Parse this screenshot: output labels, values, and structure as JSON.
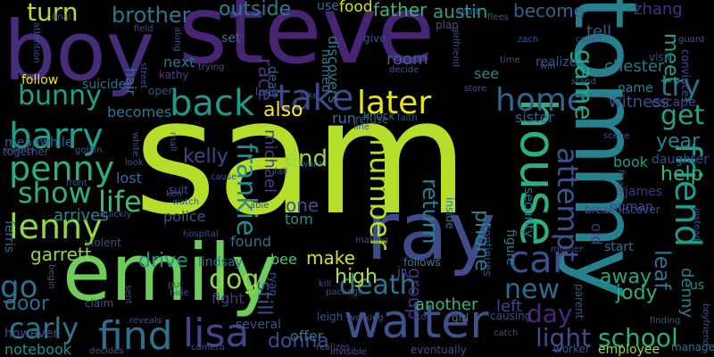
{
  "words": [
    {
      "text": "sam",
      "color": "#b5de2b"
    },
    {
      "text": "steve",
      "color": "#482475"
    },
    {
      "text": "boy",
      "color": "#472c7a"
    },
    {
      "text": "tommy",
      "color": "#26818e"
    },
    {
      "text": "emily",
      "color": "#6ccd5a"
    },
    {
      "text": "ray",
      "color": "#3e4c8a"
    },
    {
      "text": "walter",
      "color": "#3b528b"
    },
    {
      "text": "house",
      "color": "#2cb17e"
    },
    {
      "text": "barry",
      "color": "#1f9e89"
    },
    {
      "text": "penny",
      "color": "#2ab07f"
    },
    {
      "text": "take",
      "color": "#3e4989"
    },
    {
      "text": "later",
      "color": "#e5e419"
    },
    {
      "text": "back",
      "color": "#1f988b"
    },
    {
      "text": "home",
      "color": "#33638d"
    },
    {
      "text": "lenny",
      "color": "#90d743"
    },
    {
      "text": "find",
      "color": "#2d708e"
    },
    {
      "text": "lisa",
      "color": "#414487"
    },
    {
      "text": "car",
      "color": "#3c508b"
    },
    {
      "text": "friend",
      "color": "#1f9a8a"
    },
    {
      "text": "show",
      "color": "#2db27d"
    },
    {
      "text": "life",
      "color": "#3bbb75"
    },
    {
      "text": "number",
      "color": "#b8de29"
    },
    {
      "text": "carly",
      "color": "#2a788e"
    },
    {
      "text": "attempt",
      "color": "#3b528b"
    },
    {
      "text": "get",
      "color": "#20a486"
    },
    {
      "text": "try",
      "color": "#2c728e"
    },
    {
      "text": "frankie",
      "color": "#238a8d"
    },
    {
      "text": "bunny",
      "color": "#1fa088"
    },
    {
      "text": "go",
      "color": "#2d708e"
    },
    {
      "text": "new",
      "color": "#31688e"
    },
    {
      "text": "death",
      "color": "#2a788e"
    },
    {
      "text": "school",
      "color": "#29af7f"
    },
    {
      "text": "brother",
      "color": "#2a768e"
    },
    {
      "text": "light",
      "color": "#3e4c8a"
    },
    {
      "text": "game",
      "color": "#22a884"
    },
    {
      "text": "dog",
      "color": "#90d743"
    },
    {
      "text": "turn",
      "color": "#b5de2b"
    },
    {
      "text": "end",
      "color": "#95d840"
    },
    {
      "text": "day",
      "color": "#482979"
    },
    {
      "text": "outside",
      "color": "#287d8e"
    },
    {
      "text": "leaf",
      "color": "#2c738e"
    },
    {
      "text": "return",
      "color": "#26828e"
    },
    {
      "text": "door",
      "color": "#2f6c8e"
    },
    {
      "text": "year",
      "color": "#25838e"
    },
    {
      "text": "help",
      "color": "#2fb47c"
    },
    {
      "text": "donna",
      "color": "#3e4c8a"
    },
    {
      "text": "phone",
      "color": "#25858e"
    },
    {
      "text": "kelly",
      "color": "#3f4788"
    },
    {
      "text": "also",
      "color": "#fde725"
    },
    {
      "text": "away",
      "color": "#22a785"
    },
    {
      "text": "still",
      "color": "#3b528b"
    },
    {
      "text": "meet",
      "color": "#1f9e89"
    },
    {
      "text": "drive",
      "color": "#20928c"
    },
    {
      "text": "austin",
      "color": "#1fa187"
    },
    {
      "text": "father",
      "color": "#35b779"
    },
    {
      "text": "become",
      "color": "#34618d"
    },
    {
      "text": "food",
      "color": "#d2e21b"
    },
    {
      "text": "high",
      "color": "#b2dd2d"
    },
    {
      "text": "make",
      "color": "#d8e219"
    },
    {
      "text": "race",
      "color": "#46337e"
    },
    {
      "text": "discovers",
      "color": "#2a788e"
    },
    {
      "text": "michael",
      "color": "#424186"
    },
    {
      "text": "denny",
      "color": "#277f8e"
    },
    {
      "text": "jody",
      "color": "#2cb17e"
    },
    {
      "text": "group",
      "color": "#472d7b"
    },
    {
      "text": "garrett",
      "color": "#8fd744"
    },
    {
      "text": "one",
      "color": "#3b528b"
    },
    {
      "text": "zhang",
      "color": "#46327e"
    },
    {
      "text": "tell",
      "color": "#3a548c"
    },
    {
      "text": "next",
      "color": "#2b748e"
    },
    {
      "text": "arrives",
      "color": "#23898e"
    },
    {
      "text": "police",
      "color": "#39568c"
    },
    {
      "text": "chester",
      "color": "#2a788e"
    },
    {
      "text": "room",
      "color": "#32658e"
    },
    {
      "text": "left",
      "color": "#404588"
    },
    {
      "text": "witness",
      "color": "#3d4d8a"
    },
    {
      "text": "notebook",
      "color": "#21908d"
    },
    {
      "text": "sister",
      "color": "#38598c"
    },
    {
      "text": "another",
      "color": "#34b679"
    },
    {
      "text": "book",
      "color": "#1f9e89"
    },
    {
      "text": "lost",
      "color": "#2e6e8e"
    },
    {
      "text": "becomes",
      "color": "#2a788e"
    },
    {
      "text": "found",
      "color": "#2d718e"
    },
    {
      "text": "meanwhile",
      "color": "#355f8d"
    },
    {
      "text": "name",
      "color": "#26828e"
    },
    {
      "text": "see",
      "color": "#26828e"
    },
    {
      "text": "offer",
      "color": "#2b748e"
    },
    {
      "text": "bee",
      "color": "#50c46a"
    },
    {
      "text": "fight",
      "color": "#443983"
    },
    {
      "text": "tom",
      "color": "#20928c"
    },
    {
      "text": "run",
      "color": "#2c738e"
    },
    {
      "text": "james",
      "color": "#46337e"
    },
    {
      "text": "human",
      "color": "#3f4889"
    },
    {
      "text": "start",
      "color": "#2d708e"
    },
    {
      "text": "security",
      "color": "#2d708e"
    },
    {
      "text": "figure",
      "color": "#287d8e"
    },
    {
      "text": "old",
      "color": "#453781"
    },
    {
      "text": "hair",
      "color": "#2c738e"
    },
    {
      "text": "named",
      "color": "#2a788e"
    },
    {
      "text": "dead",
      "color": "#34618d"
    },
    {
      "text": "escape",
      "color": "#3f4889"
    },
    {
      "text": "daughter",
      "color": "#3e4a89"
    },
    {
      "text": "employee",
      "color": "#93d741"
    },
    {
      "text": "realize",
      "color": "#3b528b"
    },
    {
      "text": "kathy",
      "color": "#404588"
    },
    {
      "text": "visit",
      "color": "#3e4989"
    },
    {
      "text": "together",
      "color": "#3b528b"
    },
    {
      "text": "ferris",
      "color": "#2e6e8e"
    },
    {
      "text": "us",
      "color": "#20928c"
    },
    {
      "text": "lindsay",
      "color": "#2e6d8e"
    },
    {
      "text": "follows",
      "color": "#26828e"
    },
    {
      "text": "however",
      "color": "#3c4f8a"
    },
    {
      "text": "eventually",
      "color": "#3e4c8a"
    },
    {
      "text": "several",
      "color": "#3b528b"
    },
    {
      "text": "girl",
      "color": "#2e6f8e"
    },
    {
      "text": "ryan",
      "color": "#3b528b"
    },
    {
      "text": "jr",
      "color": "#3b528b"
    },
    {
      "text": "suicide",
      "color": "#2d718e"
    },
    {
      "text": "follow",
      "color": "#e5e419"
    },
    {
      "text": "set",
      "color": "#2c738e"
    },
    {
      "text": "use",
      "color": "#2c738e"
    },
    {
      "text": "final",
      "color": "#3e4c8a"
    },
    {
      "text": "knock",
      "color": "#2b748e"
    },
    {
      "text": "inside",
      "color": "#2a768e"
    },
    {
      "text": "refuse",
      "color": "#3b528b"
    },
    {
      "text": "faith",
      "color": "#3b528b"
    },
    {
      "text": "give",
      "color": "#3b528b"
    },
    {
      "text": "plan",
      "color": "#3b528b"
    },
    {
      "text": "long",
      "color": "#3b528b"
    },
    {
      "text": "manages",
      "color": "#2e6e8e"
    },
    {
      "text": "suit",
      "color": "#3b528b"
    },
    {
      "text": "watch",
      "color": "#3b528b"
    },
    {
      "text": "able",
      "color": "#3b528b"
    },
    {
      "text": "want",
      "color": "#3b528b"
    },
    {
      "text": "look",
      "color": "#3b528b"
    },
    {
      "text": "mother",
      "color": "#3b528b"
    },
    {
      "text": "parent",
      "color": "#3b528b"
    },
    {
      "text": "leigh",
      "color": "#3b528b"
    },
    {
      "text": "working",
      "color": "#3b528b"
    },
    {
      "text": "causing",
      "color": "#3b528b"
    },
    {
      "text": "continues",
      "color": "#3b528b"
    },
    {
      "text": "convinces",
      "color": "#3b528b"
    },
    {
      "text": "instead",
      "color": "#3b528b"
    },
    {
      "text": "finding",
      "color": "#3b528b"
    },
    {
      "text": "breakdiscover",
      "color": "#3b528b"
    },
    {
      "text": "guard",
      "color": "#3b528b"
    },
    {
      "text": "zach",
      "color": "#3b528b"
    },
    {
      "text": "flees",
      "color": "#3b528b"
    },
    {
      "text": "head",
      "color": "#3b528b"
    },
    {
      "text": "win",
      "color": "#3b528b"
    },
    {
      "text": "stand",
      "color": "#3b528b"
    },
    {
      "text": "time",
      "color": "#3b528b"
    },
    {
      "text": "decide",
      "color": "#3b528b"
    },
    {
      "text": "store",
      "color": "#3b528b"
    },
    {
      "text": "lake",
      "color": "#3b528b"
    },
    {
      "text": "line",
      "color": "#3b528b"
    },
    {
      "text": "fall",
      "color": "#3b528b"
    },
    {
      "text": "cause",
      "color": "#3b528b"
    },
    {
      "text": "violent",
      "color": "#3b528b"
    },
    {
      "text": "claim",
      "color": "#3b528b"
    },
    {
      "text": "sent",
      "color": "#3b528b"
    },
    {
      "text": "hide",
      "color": "#3b528b"
    },
    {
      "text": "put",
      "color": "#3b528b"
    },
    {
      "text": "reveals",
      "color": "#3b528b"
    },
    {
      "text": "camera",
      "color": "#3b528b"
    },
    {
      "text": "decides",
      "color": "#3b528b"
    },
    {
      "text": "invisible",
      "color": "#3b528b"
    },
    {
      "text": "realizes",
      "color": "#3b528b"
    },
    {
      "text": "package",
      "color": "#3b528b"
    },
    {
      "text": "kill",
      "color": "#3b528b"
    },
    {
      "text": "co",
      "color": "#3b528b"
    },
    {
      "text": "catch",
      "color": "#3b528b"
    },
    {
      "text": "worker",
      "color": "#3b528b"
    },
    {
      "text": "front",
      "color": "#3b528b"
    },
    {
      "text": "quickly",
      "color": "#3b528b"
    },
    {
      "text": "events",
      "color": "#3b528b"
    },
    {
      "text": "goblin",
      "color": "#3b528b"
    },
    {
      "text": "begin",
      "color": "#3b528b"
    },
    {
      "text": "ken",
      "color": "#3b528b"
    },
    {
      "text": "scene",
      "color": "#3b528b"
    },
    {
      "text": "finally",
      "color": "#3b528b"
    },
    {
      "text": "trying",
      "color": "#3b528b"
    },
    {
      "text": "along",
      "color": "#3b528b"
    },
    {
      "text": "street",
      "color": "#3b528b"
    },
    {
      "text": "girlfriend",
      "color": "#3b528b"
    },
    {
      "text": "open",
      "color": "#3b528b"
    },
    {
      "text": "mall",
      "color": "#3b528b"
    },
    {
      "text": "white",
      "color": "#3b528b"
    },
    {
      "text": "attention",
      "color": "#3b528b"
    },
    {
      "text": "field",
      "color": "#3b528b"
    },
    {
      "text": "called",
      "color": "#3b528b"
    },
    {
      "text": "making",
      "color": "#3b528b"
    },
    {
      "text": "boyfriend",
      "color": "#3b528b"
    },
    {
      "text": "hospital",
      "color": "#3b528b"
    }
  ]
}
